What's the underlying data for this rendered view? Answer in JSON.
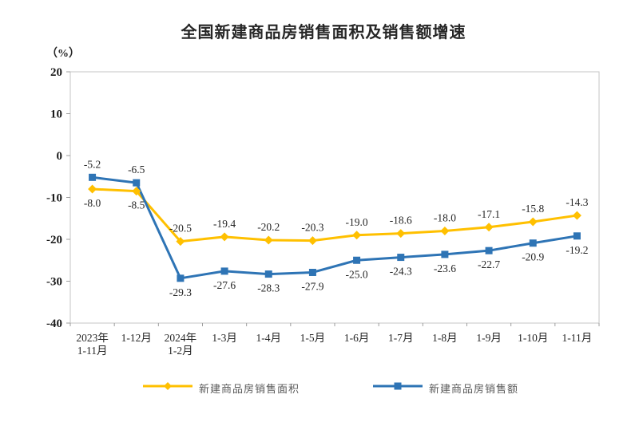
{
  "title": "全国新建商品房销售面积及销售额增速",
  "unit_label": "（%）",
  "chart_data": {
    "type": "line",
    "categories": [
      "2023年\n1-11月",
      "1-12月",
      "2024年\n1-2月",
      "1-3月",
      "1-4月",
      "1-5月",
      "1-6月",
      "1-7月",
      "1-8月",
      "1-9月",
      "1-10月",
      "1-11月"
    ],
    "series": [
      {
        "name": "新建商品房销售面积",
        "color": "#FFC000",
        "marker": "diamond",
        "values": [
          -8.0,
          -8.5,
          -20.5,
          -19.4,
          -20.2,
          -20.3,
          -19.0,
          -18.6,
          -18.0,
          -17.1,
          -15.8,
          -14.3
        ],
        "label_position": [
          "below",
          "below",
          "above",
          "above",
          "above",
          "above",
          "above",
          "above",
          "above",
          "above",
          "above",
          "above"
        ]
      },
      {
        "name": "新建商品房销售额",
        "color": "#2E74B5",
        "marker": "square",
        "values": [
          -5.2,
          -6.5,
          -29.3,
          -27.6,
          -28.3,
          -27.9,
          -25.0,
          -24.3,
          -23.6,
          -22.7,
          -20.9,
          -19.2
        ],
        "label_position": [
          "above",
          "above",
          "below",
          "below",
          "below",
          "below",
          "below",
          "below",
          "below",
          "below",
          "below",
          "below"
        ]
      }
    ],
    "ylim": [
      -40,
      20
    ],
    "ytick_step": 10,
    "grid": false,
    "legend_position": "bottom",
    "axis_color": "#C4C4C4",
    "tick_color": "#9E9E9E"
  }
}
